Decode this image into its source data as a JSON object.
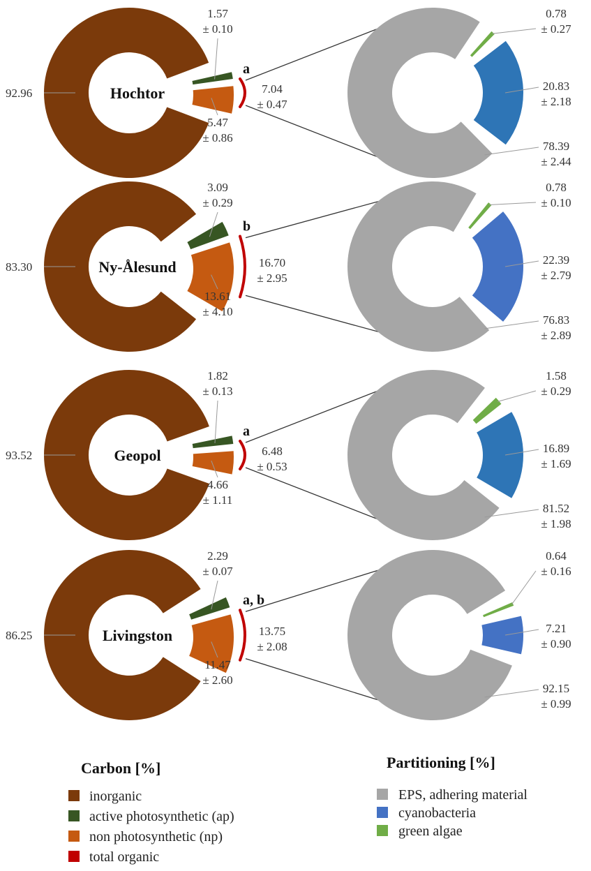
{
  "chart_data": {
    "type": "donut",
    "colors": {
      "inorganic": "#7B3A0B",
      "active_photosynthetic": "#375623",
      "non_photosynthetic": "#C55A11",
      "total_organic": "#C00000",
      "eps": "#A6A6A6",
      "cyanobacteria_dark": "#2E75B6",
      "cyanobacteria_light": "#4472C4",
      "green_algae": "#70AD47"
    },
    "sites": [
      {
        "name": "Hochtor",
        "letter": "a",
        "carbon": {
          "inorganic": "92.96",
          "active_photosynthetic": {
            "value": "1.57",
            "sd": "± 0.10"
          },
          "non_photosynthetic": {
            "value": "5.47",
            "sd": "± 0.86"
          },
          "total_organic": {
            "value": "7.04",
            "sd": "± 0.47"
          }
        },
        "partitioning": {
          "green_algae": {
            "value": "0.78",
            "sd": "± 0.27"
          },
          "cyanobacteria": {
            "value": "20.83",
            "sd": "± 2.18"
          },
          "eps": {
            "value": "78.39",
            "sd": "± 2.44"
          }
        }
      },
      {
        "name": "Ny-Ålesund",
        "letter": "b",
        "carbon": {
          "inorganic": "83.30",
          "active_photosynthetic": {
            "value": "3.09",
            "sd": "± 0.29"
          },
          "non_photosynthetic": {
            "value": "13.61",
            "sd": "± 4.10"
          },
          "total_organic": {
            "value": "16.70",
            "sd": "± 2.95"
          }
        },
        "partitioning": {
          "green_algae": {
            "value": "0.78",
            "sd": "± 0.10"
          },
          "cyanobacteria": {
            "value": "22.39",
            "sd": "± 2.79"
          },
          "eps": {
            "value": "76.83",
            "sd": "± 2.89"
          }
        }
      },
      {
        "name": "Geopol",
        "letter": "a",
        "carbon": {
          "inorganic": "93.52",
          "active_photosynthetic": {
            "value": "1.82",
            "sd": "± 0.13"
          },
          "non_photosynthetic": {
            "value": "4.66",
            "sd": "± 1.11"
          },
          "total_organic": {
            "value": "6.48",
            "sd": "± 0.53"
          }
        },
        "partitioning": {
          "green_algae": {
            "value": "1.58",
            "sd": "± 0.29"
          },
          "cyanobacteria": {
            "value": "16.89",
            "sd": "± 1.69"
          },
          "eps": {
            "value": "81.52",
            "sd": "± 1.98"
          }
        }
      },
      {
        "name": "Livingston",
        "letter": "a, b",
        "carbon": {
          "inorganic": "86.25",
          "active_photosynthetic": {
            "value": "2.29",
            "sd": "± 0.07"
          },
          "non_photosynthetic": {
            "value": "11.47",
            "sd": "± 2.60"
          },
          "total_organic": {
            "value": "13.75",
            "sd": "± 2.08"
          }
        },
        "partitioning": {
          "green_algae": {
            "value": "0.64",
            "sd": "± 0.16"
          },
          "cyanobacteria": {
            "value": "7.21",
            "sd": "± 0.90"
          },
          "eps": {
            "value": "92.15",
            "sd": "± 0.99"
          }
        }
      }
    ],
    "legends": {
      "carbon": {
        "title": "Carbon [%]",
        "items": [
          {
            "label": "inorganic",
            "color": "#7B3A0B"
          },
          {
            "label": "active photosynthetic (ap)",
            "color": "#375623"
          },
          {
            "label": "non photosynthetic (np)",
            "color": "#C55A11"
          },
          {
            "label": "total organic",
            "color": "#C00000"
          }
        ]
      },
      "partitioning": {
        "title": "Partitioning [%]",
        "items": [
          {
            "label": "EPS, adhering material",
            "color": "#A6A6A6"
          },
          {
            "label": "cyanobacteria",
            "color": "#4472C4"
          },
          {
            "label": "green algae",
            "color": "#70AD47"
          }
        ]
      }
    }
  }
}
